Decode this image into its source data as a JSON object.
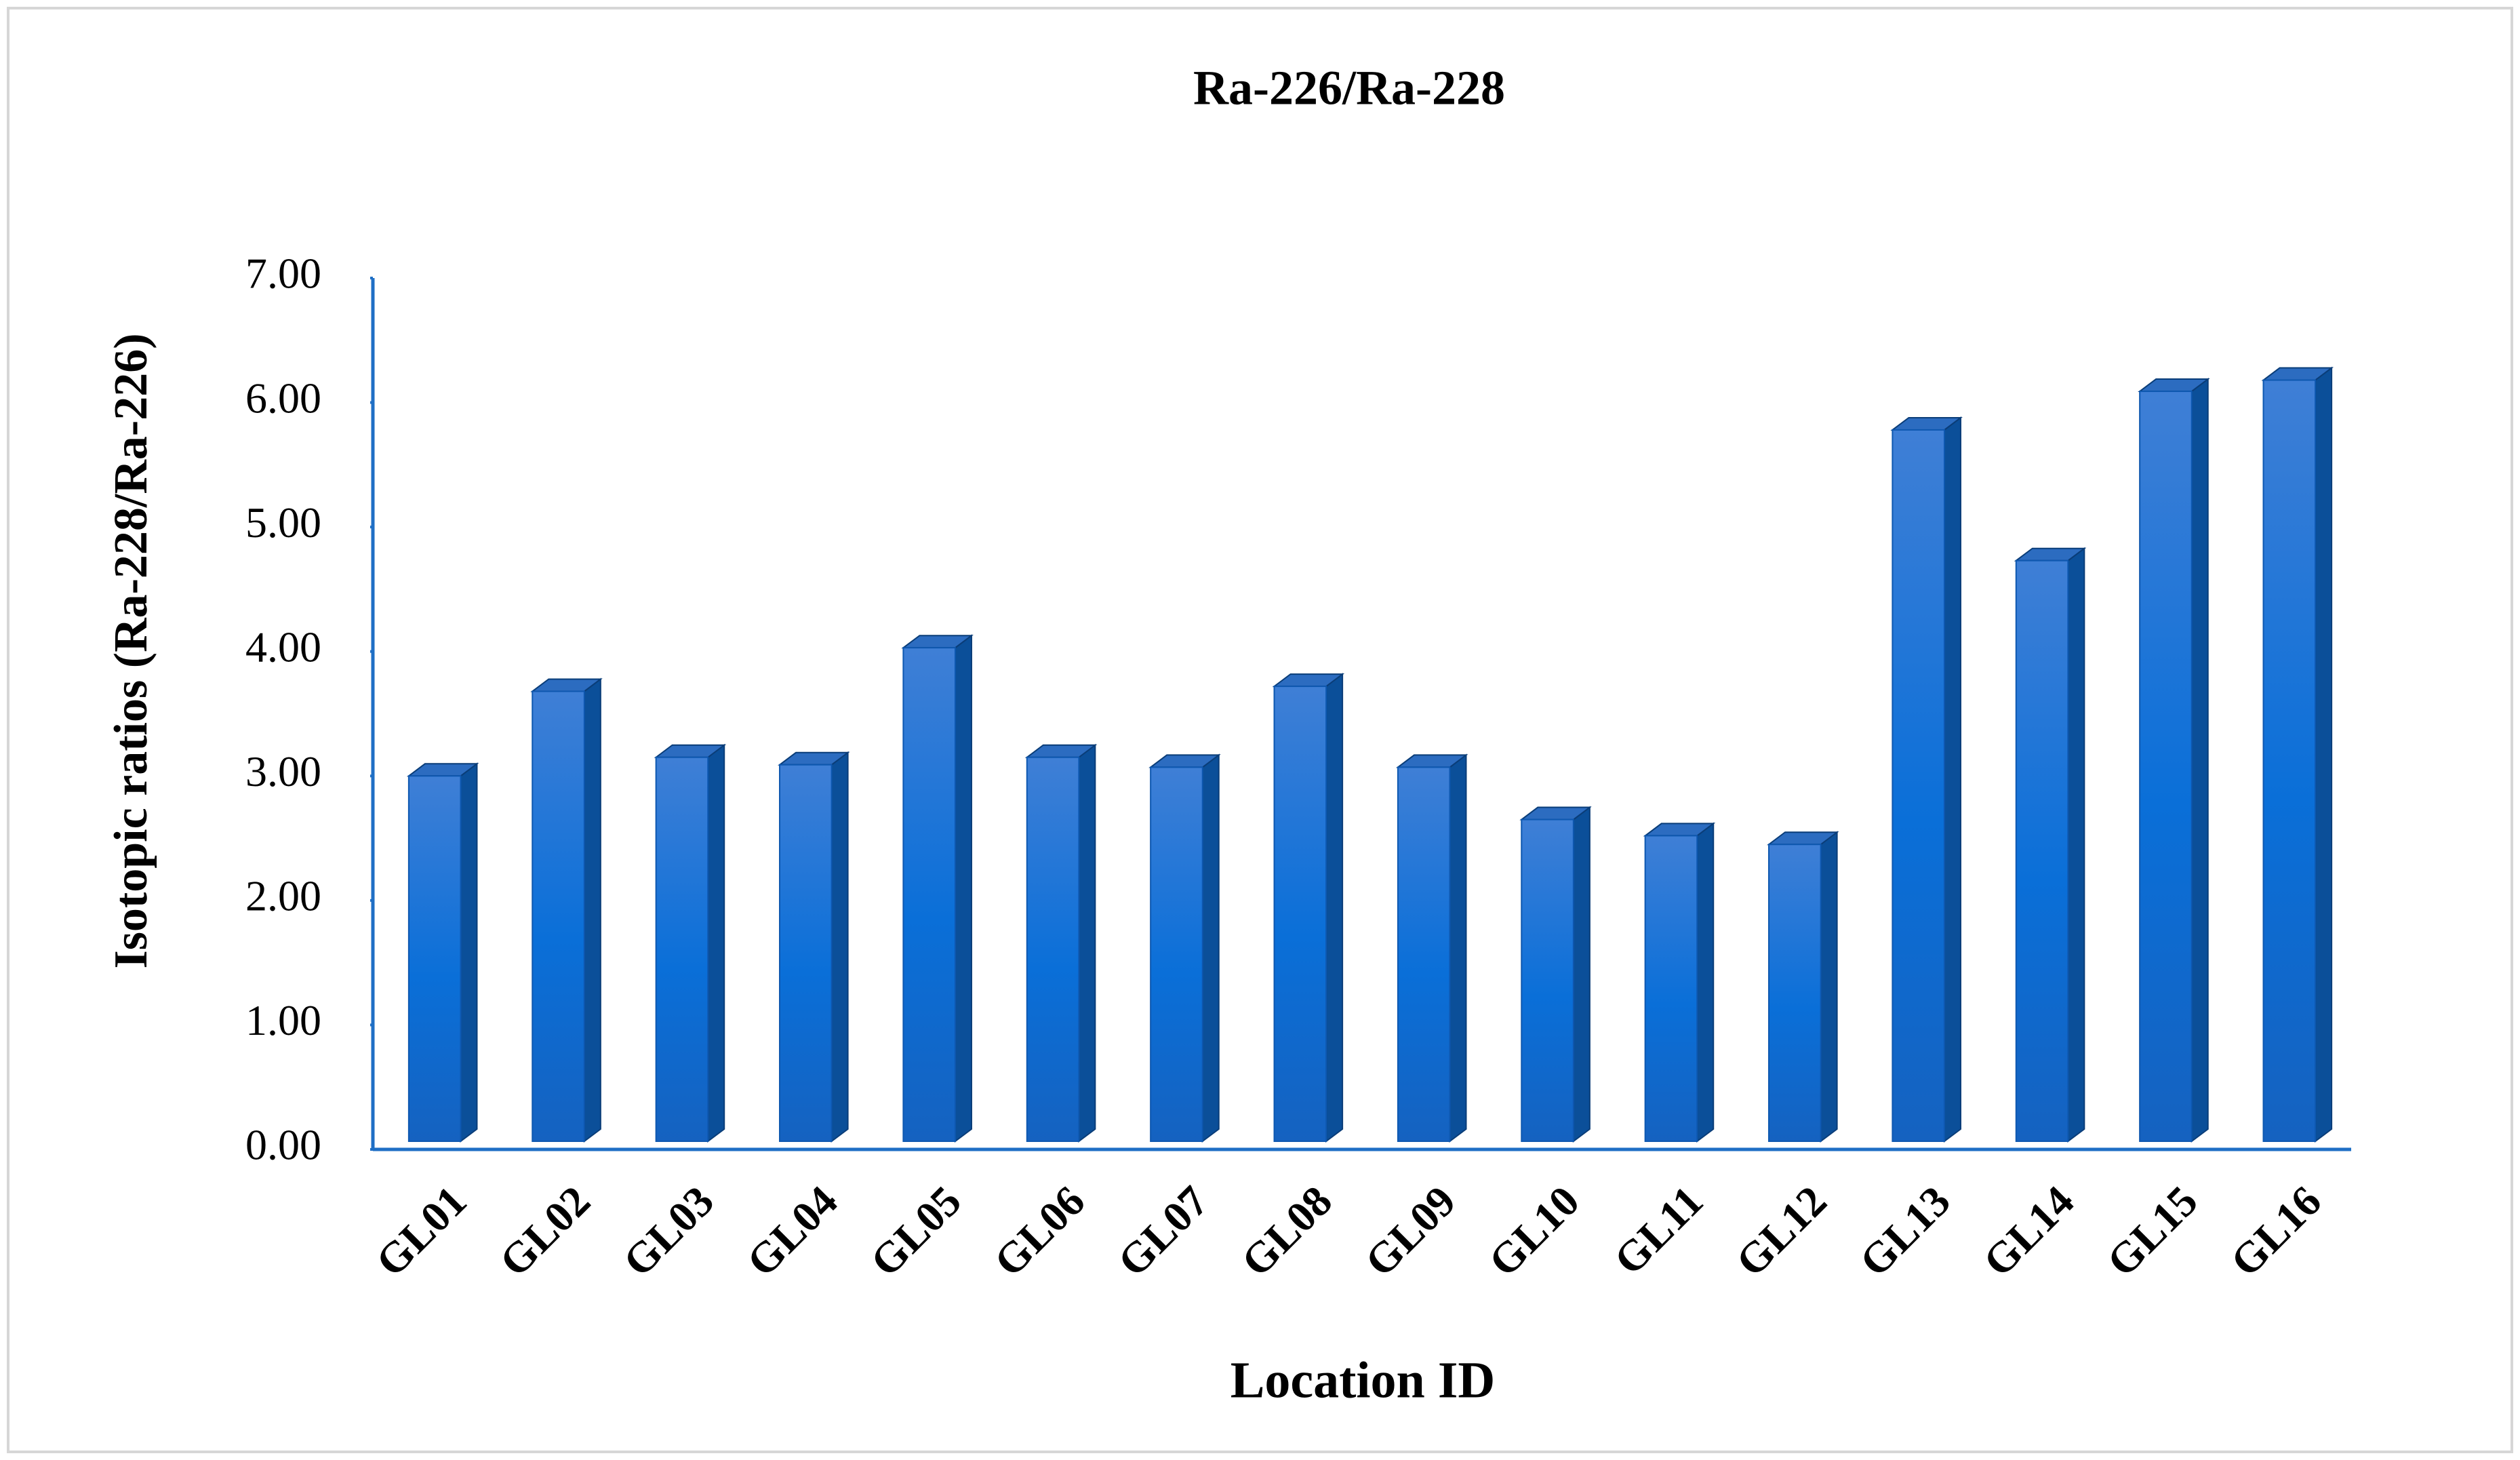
{
  "chart_data": {
    "type": "bar3d",
    "title": "Ra-226/Ra-228",
    "x_label": "Location ID",
    "y_label": "Isotopic ratios (Ra-228/Ra-226)",
    "categories": [
      "GL01",
      "GL02",
      "GL03",
      "GL04",
      "GL05",
      "GL06",
      "GL07",
      "GL08",
      "GL09",
      "GL10",
      "GL11",
      "GL12",
      "GL13",
      "GL14",
      "GL15",
      "GL16"
    ],
    "values": [
      3.0,
      3.68,
      3.15,
      3.09,
      4.03,
      3.15,
      3.07,
      3.72,
      3.07,
      2.65,
      2.52,
      2.45,
      5.78,
      4.73,
      6.09,
      6.18
    ],
    "color": "#1a6fd0",
    "ylim": [
      0,
      7
    ],
    "yticks": [
      {
        "value": 0,
        "label": "0.00"
      },
      {
        "value": 1,
        "label": "1.00"
      },
      {
        "value": 2,
        "label": "2.00"
      },
      {
        "value": 3,
        "label": "3.00"
      },
      {
        "value": 4,
        "label": "4.00"
      },
      {
        "value": 5,
        "label": "5.00"
      },
      {
        "value": 6,
        "label": "6.00"
      },
      {
        "value": 7,
        "label": "7.00"
      }
    ],
    "grid": false
  }
}
